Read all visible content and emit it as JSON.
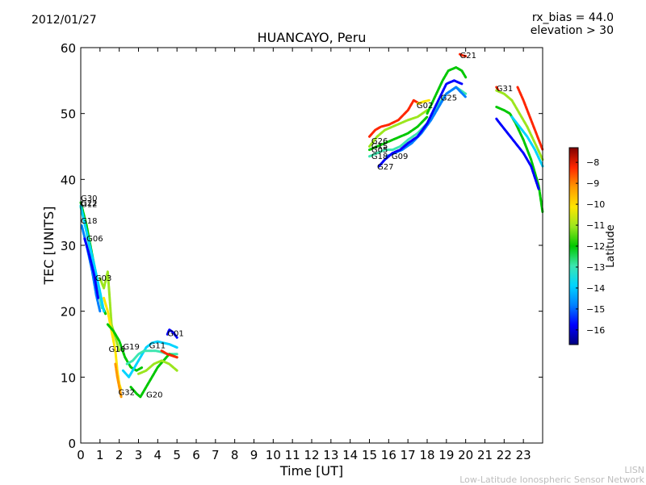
{
  "header": {
    "date": "2012/01/27",
    "rx_bias": "rx_bias = 44.0",
    "elevation": "elevation > 30"
  },
  "credits": {
    "line1": "LISN",
    "line2": "Low-Latitude Ionospheric Sensor Network"
  },
  "chart_data": {
    "type": "scatter",
    "title": "HUANCAYO, Peru",
    "xlabel": "Time [UT]",
    "ylabel": "TEC [UNITS]",
    "xlim": [
      0,
      24
    ],
    "ylim": [
      0,
      60
    ],
    "xticks": [
      0,
      1,
      2,
      3,
      4,
      5,
      6,
      7,
      8,
      9,
      10,
      11,
      12,
      13,
      14,
      15,
      16,
      17,
      18,
      19,
      20,
      21,
      22,
      23
    ],
    "yticks": [
      0,
      10,
      20,
      30,
      40,
      50,
      60
    ],
    "colorbar": {
      "label": "Latitude",
      "range": [
        -16.7,
        -7.3
      ],
      "ticks": [
        -8,
        -9,
        -10,
        -11,
        -12,
        -13,
        -14,
        -15,
        -16
      ],
      "stops": [
        "#00007f",
        "#0000ff",
        "#0080ff",
        "#00d4ff",
        "#3ce6b0",
        "#00c800",
        "#9ce61e",
        "#ffe600",
        "#ff9900",
        "#ff2600",
        "#7f0000"
      ]
    },
    "series": [
      {
        "name": "G30",
        "label": "G30",
        "label_at": [
          0.0,
          37.2
        ],
        "color": "#00c800",
        "points": [
          [
            0.0,
            36.5
          ],
          [
            0.3,
            33.0
          ],
          [
            0.6,
            28.5
          ],
          [
            0.9,
            24.0
          ],
          [
            1.1,
            21.0
          ],
          [
            1.3,
            19.5
          ]
        ]
      },
      {
        "name": "G22",
        "label": "G22",
        "label_at": [
          0.0,
          36.5
        ],
        "color": "#3ce6b0",
        "points": [
          [
            0.0,
            35.8
          ],
          [
            0.3,
            32.0
          ],
          [
            0.6,
            27.5
          ],
          [
            0.9,
            23.5
          ],
          [
            1.1,
            20.5
          ]
        ]
      },
      {
        "name": "G12",
        "label": "G12",
        "label_at": [
          0.0,
          36.3
        ],
        "color": "#00d4ff",
        "points": [
          [
            0.0,
            36.0
          ],
          [
            0.35,
            31.5
          ],
          [
            0.7,
            27.0
          ],
          [
            1.0,
            23.0
          ],
          [
            1.2,
            20.0
          ]
        ]
      },
      {
        "name": "G18",
        "label": "G18",
        "label_at": [
          0.0,
          33.8
        ],
        "color": "#0080ff",
        "points": [
          [
            0.05,
            33.0
          ],
          [
            0.3,
            30.0
          ],
          [
            0.6,
            26.0
          ],
          [
            0.8,
            22.5
          ],
          [
            1.0,
            20.0
          ]
        ]
      },
      {
        "name": "G06",
        "label": "G06",
        "label_at": [
          0.3,
          31.1
        ],
        "color": "#0000ff",
        "points": [
          [
            0.2,
            31.0
          ],
          [
            0.45,
            28.5
          ],
          [
            0.7,
            25.5
          ],
          [
            0.9,
            22.0
          ]
        ]
      },
      {
        "name": "G03",
        "label": "G03",
        "label_at": [
          0.75,
          25.1
        ],
        "color": "#9ce61e",
        "points": [
          [
            1.0,
            25.0
          ],
          [
            1.2,
            23.5
          ],
          [
            1.4,
            26.0
          ],
          [
            1.5,
            22.0
          ],
          [
            1.6,
            18.0
          ],
          [
            1.8,
            16.0
          ],
          [
            2.0,
            14.0
          ]
        ]
      },
      {
        "name": "G16",
        "label": "G16",
        "label_at": [
          1.45,
          14.3
        ],
        "color": "#ffe600",
        "points": [
          [
            1.2,
            22.0
          ],
          [
            1.4,
            20.0
          ],
          [
            1.6,
            17.0
          ],
          [
            1.8,
            14.0
          ],
          [
            1.9,
            11.0
          ],
          [
            2.0,
            9.0
          ],
          [
            2.1,
            8.0
          ]
        ]
      },
      {
        "name": "G19",
        "label": "G19",
        "label_at": [
          2.2,
          14.7
        ],
        "color": "#00c800",
        "points": [
          [
            1.4,
            18.0
          ],
          [
            1.7,
            17.0
          ],
          [
            2.0,
            15.5
          ],
          [
            2.3,
            13.0
          ],
          [
            2.6,
            11.5
          ],
          [
            2.9,
            11.0
          ],
          [
            3.2,
            11.5
          ]
        ]
      },
      {
        "name": "G32",
        "label": "G32",
        "label_at": [
          1.95,
          7.8
        ],
        "color": "#ff9900",
        "points": [
          [
            1.8,
            12.0
          ],
          [
            1.9,
            10.0
          ],
          [
            2.0,
            8.5
          ],
          [
            2.1,
            7.0
          ]
        ]
      },
      {
        "name": "G11",
        "label": "G11",
        "label_at": [
          3.55,
          14.9
        ],
        "color": "#00d4ff",
        "points": [
          [
            2.2,
            11.0
          ],
          [
            2.5,
            10.0
          ],
          [
            2.8,
            11.5
          ],
          [
            3.1,
            13.0
          ],
          [
            3.4,
            14.5
          ],
          [
            3.7,
            15.2
          ],
          [
            4.0,
            15.4
          ],
          [
            4.3,
            15.2
          ],
          [
            4.6,
            15.0
          ],
          [
            5.0,
            14.5
          ]
        ]
      },
      {
        "name": "G14",
        "label": "",
        "label_at": [
          0,
          0
        ],
        "color": "#3ce6b0",
        "points": [
          [
            2.4,
            12.0
          ],
          [
            2.7,
            12.5
          ],
          [
            3.0,
            13.5
          ],
          [
            3.3,
            14.0
          ],
          [
            3.6,
            14.0
          ],
          [
            3.9,
            14.0
          ],
          [
            4.2,
            13.8
          ],
          [
            4.5,
            13.5
          ],
          [
            4.8,
            13.5
          ],
          [
            5.0,
            13.5
          ]
        ]
      },
      {
        "name": "G20",
        "label": "G20",
        "label_at": [
          3.4,
          7.4
        ],
        "color": "#00c800",
        "points": [
          [
            2.6,
            8.5
          ],
          [
            2.9,
            7.5
          ],
          [
            3.1,
            7.0
          ],
          [
            3.4,
            8.5
          ],
          [
            3.7,
            10.0
          ],
          [
            4.0,
            11.5
          ],
          [
            4.3,
            12.5
          ],
          [
            4.6,
            13.5
          ],
          [
            5.0,
            13.0
          ]
        ]
      },
      {
        "name": "G24",
        "label": "",
        "label_at": [
          0,
          0
        ],
        "color": "#ff2600",
        "points": [
          [
            4.2,
            14.0
          ],
          [
            4.5,
            13.5
          ],
          [
            4.8,
            13.2
          ],
          [
            5.0,
            13.0
          ]
        ]
      },
      {
        "name": "G10",
        "label": "",
        "label_at": [
          0,
          0
        ],
        "color": "#9ce61e",
        "points": [
          [
            3.0,
            10.5
          ],
          [
            3.4,
            11.0
          ],
          [
            3.8,
            12.0
          ],
          [
            4.2,
            12.5
          ],
          [
            4.6,
            12.0
          ],
          [
            5.0,
            11.0
          ]
        ]
      },
      {
        "name": "G01",
        "label": "G01",
        "label_at": [
          4.5,
          16.7
        ],
        "color": "#0000ff",
        "points": [
          [
            4.5,
            16.5
          ],
          [
            4.6,
            17.2
          ],
          [
            4.8,
            16.8
          ],
          [
            5.0,
            16.0
          ]
        ]
      },
      {
        "name": "G26",
        "label": "G26",
        "label_at": [
          15.1,
          45.9
        ],
        "color": "#ff2600",
        "points": [
          [
            15.0,
            46.5
          ],
          [
            15.3,
            47.5
          ],
          [
            15.6,
            48.0
          ],
          [
            16.0,
            48.3
          ],
          [
            16.5,
            49.0
          ],
          [
            17.0,
            50.5
          ],
          [
            17.3,
            52.0
          ],
          [
            17.6,
            51.5
          ]
        ]
      },
      {
        "name": "G15",
        "label": "G15",
        "label_at": [
          15.1,
          45.1
        ],
        "color": "#9ce61e",
        "points": [
          [
            15.0,
            45.0
          ],
          [
            15.4,
            46.5
          ],
          [
            15.8,
            47.5
          ],
          [
            16.2,
            48.0
          ],
          [
            16.6,
            48.5
          ],
          [
            17.0,
            49.0
          ],
          [
            17.5,
            49.5
          ],
          [
            18.0,
            50.5
          ]
        ]
      },
      {
        "name": "G05",
        "label": "G05",
        "label_at": [
          15.1,
          44.6
        ],
        "color": "#00c800",
        "points": [
          [
            15.0,
            44.5
          ],
          [
            15.4,
            45.0
          ],
          [
            15.8,
            45.5
          ],
          [
            16.2,
            46.0
          ],
          [
            16.6,
            46.5
          ],
          [
            17.0,
            47.0
          ],
          [
            17.5,
            48.0
          ],
          [
            18.0,
            49.5
          ]
        ]
      },
      {
        "name": "G18b",
        "label": "G18",
        "label_at": [
          15.1,
          43.6
        ],
        "color": "#3ce6b0",
        "points": [
          [
            15.0,
            43.5
          ],
          [
            15.4,
            44.0
          ],
          [
            15.8,
            44.5
          ],
          [
            16.2,
            44.5
          ],
          [
            16.6,
            45.0
          ],
          [
            17.0,
            46.0
          ],
          [
            17.5,
            47.0
          ],
          [
            18.0,
            48.5
          ],
          [
            18.5,
            51.0
          ],
          [
            19.0,
            53.0
          ],
          [
            19.5,
            54.0
          ],
          [
            20.0,
            53.0
          ]
        ]
      },
      {
        "name": "G09",
        "label": "G09",
        "label_at": [
          16.15,
          43.6
        ],
        "color": "#0080ff",
        "points": [
          [
            15.9,
            43.5
          ],
          [
            16.3,
            44.0
          ],
          [
            16.7,
            44.5
          ],
          [
            17.2,
            45.5
          ],
          [
            17.7,
            47.0
          ],
          [
            18.2,
            49.0
          ],
          [
            18.6,
            51.0
          ],
          [
            19.0,
            53.0
          ],
          [
            19.5,
            54.0
          ],
          [
            20.0,
            52.5
          ]
        ]
      },
      {
        "name": "G27",
        "label": "G27",
        "label_at": [
          15.4,
          42.0
        ],
        "color": "#0000ff",
        "points": [
          [
            15.5,
            42.0
          ],
          [
            15.8,
            43.0
          ],
          [
            16.2,
            44.0
          ],
          [
            16.6,
            44.5
          ],
          [
            17.0,
            45.5
          ],
          [
            17.5,
            46.5
          ],
          [
            18.0,
            48.5
          ],
          [
            18.5,
            51.5
          ],
          [
            19.0,
            54.5
          ],
          [
            19.4,
            55.0
          ],
          [
            19.8,
            54.5
          ]
        ]
      },
      {
        "name": "G02",
        "label": "G02",
        "label_at": [
          17.45,
          51.3
        ],
        "color": "#ffe600",
        "points": [
          [
            17.5,
            51.5
          ],
          [
            17.8,
            51.8
          ],
          [
            18.1,
            52.0
          ]
        ]
      },
      {
        "name": "G25",
        "label": "G25",
        "label_at": [
          18.7,
          52.5
        ],
        "color": "#00c800",
        "points": [
          [
            18.0,
            50.0
          ],
          [
            18.4,
            52.5
          ],
          [
            18.8,
            55.0
          ],
          [
            19.1,
            56.5
          ],
          [
            19.5,
            57.0
          ],
          [
            19.8,
            56.5
          ],
          [
            20.0,
            55.5
          ]
        ]
      },
      {
        "name": "G21",
        "label": "G21",
        "label_at": [
          19.7,
          58.9
        ],
        "color": "#ff2600",
        "points": [
          [
            19.7,
            59.0
          ],
          [
            19.85,
            58.8
          ],
          [
            20.0,
            58.7
          ]
        ]
      },
      {
        "name": "G31",
        "label": "G31",
        "label_at": [
          21.6,
          53.9
        ],
        "color": "#ff2600",
        "points": [
          [
            21.6,
            54.0
          ],
          [
            21.7,
            53.5
          ]
        ]
      },
      {
        "name": "G29",
        "label": "",
        "label_at": [
          0,
          0
        ],
        "color": "#9ce61e",
        "points": [
          [
            21.6,
            53.5
          ],
          [
            22.0,
            53.0
          ],
          [
            22.4,
            52.0
          ],
          [
            22.8,
            50.0
          ],
          [
            23.2,
            48.0
          ],
          [
            23.6,
            45.5
          ],
          [
            24.0,
            43.0
          ]
        ]
      },
      {
        "name": "G23",
        "label": "",
        "label_at": [
          0,
          0
        ],
        "color": "#00c800",
        "points": [
          [
            21.6,
            51.0
          ],
          [
            22.0,
            50.5
          ],
          [
            22.3,
            50.0
          ],
          [
            22.6,
            48.5
          ],
          [
            23.0,
            46.0
          ],
          [
            23.4,
            43.0
          ],
          [
            23.8,
            39.0
          ],
          [
            24.0,
            35.0
          ]
        ]
      },
      {
        "name": "G13",
        "label": "",
        "label_at": [
          0,
          0
        ],
        "color": "#00d4ff",
        "points": [
          [
            22.4,
            49.5
          ],
          [
            22.8,
            48.0
          ],
          [
            23.2,
            46.5
          ],
          [
            23.6,
            44.5
          ],
          [
            24.0,
            42.0
          ]
        ]
      },
      {
        "name": "G07",
        "label": "",
        "label_at": [
          0,
          0
        ],
        "color": "#0000ff",
        "points": [
          [
            21.6,
            49.2
          ],
          [
            21.7,
            48.8
          ],
          [
            23.0,
            44.0
          ],
          [
            23.4,
            42.0
          ],
          [
            23.8,
            38.5
          ]
        ]
      },
      {
        "name": "G17",
        "label": "",
        "label_at": [
          0,
          0
        ],
        "color": "#ff2600",
        "points": [
          [
            22.7,
            54.0
          ],
          [
            23.0,
            52.0
          ],
          [
            23.4,
            49.0
          ],
          [
            23.8,
            46.0
          ],
          [
            24.0,
            44.5
          ]
        ]
      }
    ]
  }
}
